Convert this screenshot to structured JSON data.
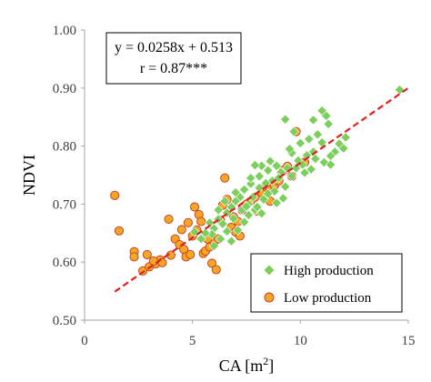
{
  "chart_data": {
    "type": "scatter",
    "xlabel": "CA [m²]",
    "ylabel": "NDVI",
    "xlim": [
      0,
      15
    ],
    "ylim": [
      0.5,
      1.0
    ],
    "x_ticks": [
      "0",
      "5",
      "10",
      "15"
    ],
    "y_ticks": [
      "0.50",
      "0.60",
      "0.70",
      "0.80",
      "0.90",
      "1.00"
    ],
    "grid": false,
    "legend_position": "bottom-right",
    "annotation": {
      "equation": "y = 0.0258x + 0.513",
      "r": "r = 0.87***"
    },
    "trendline": {
      "slope": 0.0258,
      "intercept": 0.513,
      "x_range": [
        1.4,
        15.0
      ],
      "color": "#e02020",
      "style": "dashed"
    },
    "series": [
      {
        "name": "High production",
        "marker": "diamond",
        "color": "#7ccf5c",
        "points": [
          [
            14.6,
            0.897
          ],
          [
            11.0,
            0.861
          ],
          [
            11.2,
            0.852
          ],
          [
            9.3,
            0.846
          ],
          [
            10.6,
            0.845
          ],
          [
            11.3,
            0.838
          ],
          [
            9.7,
            0.825
          ],
          [
            10.8,
            0.82
          ],
          [
            11.0,
            0.806
          ],
          [
            12.1,
            0.815
          ],
          [
            11.8,
            0.804
          ],
          [
            12.0,
            0.796
          ],
          [
            11.6,
            0.79
          ],
          [
            11.4,
            0.783
          ],
          [
            10.6,
            0.79
          ],
          [
            10.3,
            0.784
          ],
          [
            9.6,
            0.788
          ],
          [
            9.9,
            0.775
          ],
          [
            10.1,
            0.768
          ],
          [
            10.7,
            0.778
          ],
          [
            11.1,
            0.772
          ],
          [
            11.4,
            0.768
          ],
          [
            10.5,
            0.76
          ],
          [
            9.8,
            0.762
          ],
          [
            10.2,
            0.754
          ],
          [
            9.4,
            0.762
          ],
          [
            9.1,
            0.755
          ],
          [
            9.6,
            0.748
          ],
          [
            8.6,
            0.774
          ],
          [
            8.9,
            0.766
          ],
          [
            8.5,
            0.758
          ],
          [
            8.2,
            0.766
          ],
          [
            7.9,
            0.767
          ],
          [
            9.0,
            0.745
          ],
          [
            8.7,
            0.74
          ],
          [
            8.4,
            0.736
          ],
          [
            9.3,
            0.73
          ],
          [
            8.8,
            0.722
          ],
          [
            8.1,
            0.728
          ],
          [
            8.5,
            0.718
          ],
          [
            7.7,
            0.735
          ],
          [
            7.4,
            0.725
          ],
          [
            7.8,
            0.712
          ],
          [
            8.3,
            0.708
          ],
          [
            7.6,
            0.7
          ],
          [
            7.2,
            0.712
          ],
          [
            7.0,
            0.705
          ],
          [
            6.8,
            0.695
          ],
          [
            7.3,
            0.69
          ],
          [
            7.9,
            0.69
          ],
          [
            8.2,
            0.684
          ],
          [
            7.6,
            0.681
          ],
          [
            6.6,
            0.685
          ],
          [
            6.9,
            0.675
          ],
          [
            7.4,
            0.669
          ],
          [
            6.4,
            0.666
          ],
          [
            6.2,
            0.674
          ],
          [
            6.0,
            0.658
          ],
          [
            6.6,
            0.653
          ],
          [
            7.1,
            0.655
          ],
          [
            5.9,
            0.648
          ],
          [
            5.6,
            0.65
          ],
          [
            5.8,
            0.668
          ],
          [
            5.4,
            0.64
          ],
          [
            6.3,
            0.64
          ],
          [
            6.8,
            0.636
          ],
          [
            6.0,
            0.628
          ],
          [
            5.1,
            0.652
          ],
          [
            7.5,
            0.696
          ],
          [
            8.0,
            0.695
          ],
          [
            8.9,
            0.702
          ],
          [
            9.2,
            0.71
          ],
          [
            7.7,
            0.745
          ],
          [
            8.1,
            0.748
          ],
          [
            9.5,
            0.795
          ],
          [
            10.0,
            0.805
          ],
          [
            10.4,
            0.812
          ],
          [
            6.5,
            0.705
          ],
          [
            7.0,
            0.72
          ],
          [
            6.2,
            0.69
          ]
        ]
      },
      {
        "name": "Low production",
        "marker": "circle",
        "color": "#f5a623",
        "edge_color": "#c0392b",
        "points": [
          [
            1.4,
            0.715
          ],
          [
            1.6,
            0.654
          ],
          [
            2.3,
            0.618
          ],
          [
            2.3,
            0.609
          ],
          [
            2.9,
            0.613
          ],
          [
            2.7,
            0.585
          ],
          [
            3.0,
            0.592
          ],
          [
            3.3,
            0.597
          ],
          [
            3.5,
            0.604
          ],
          [
            3.6,
            0.599
          ],
          [
            3.9,
            0.674
          ],
          [
            4.2,
            0.64
          ],
          [
            4.4,
            0.63
          ],
          [
            4.6,
            0.622
          ],
          [
            4.7,
            0.609
          ],
          [
            4.9,
            0.613
          ],
          [
            5.0,
            0.645
          ],
          [
            5.2,
            0.655
          ],
          [
            5.1,
            0.695
          ],
          [
            5.3,
            0.682
          ],
          [
            5.5,
            0.615
          ],
          [
            5.6,
            0.619
          ],
          [
            5.8,
            0.626
          ],
          [
            5.9,
            0.598
          ],
          [
            6.1,
            0.587
          ],
          [
            6.0,
            0.635
          ],
          [
            6.2,
            0.64
          ],
          [
            6.3,
            0.672
          ],
          [
            6.5,
            0.745
          ],
          [
            6.6,
            0.708
          ],
          [
            6.8,
            0.66
          ],
          [
            7.0,
            0.652
          ],
          [
            7.2,
            0.645
          ],
          [
            7.3,
            0.69
          ],
          [
            7.5,
            0.7
          ],
          [
            7.7,
            0.705
          ],
          [
            7.9,
            0.712
          ],
          [
            8.0,
            0.688
          ],
          [
            8.2,
            0.72
          ],
          [
            8.4,
            0.73
          ],
          [
            8.6,
            0.725
          ],
          [
            8.8,
            0.732
          ],
          [
            9.0,
            0.74
          ],
          [
            9.2,
            0.758
          ],
          [
            9.4,
            0.765
          ],
          [
            9.6,
            0.748
          ],
          [
            9.8,
            0.825
          ],
          [
            10.2,
            0.772
          ],
          [
            4.0,
            0.612
          ],
          [
            4.8,
            0.668
          ],
          [
            5.4,
            0.67
          ],
          [
            6.4,
            0.698
          ],
          [
            6.9,
            0.678
          ],
          [
            7.1,
            0.67
          ],
          [
            8.6,
            0.705
          ],
          [
            5.7,
            0.64
          ],
          [
            4.5,
            0.656
          ],
          [
            3.2,
            0.602
          ]
        ]
      }
    ]
  }
}
